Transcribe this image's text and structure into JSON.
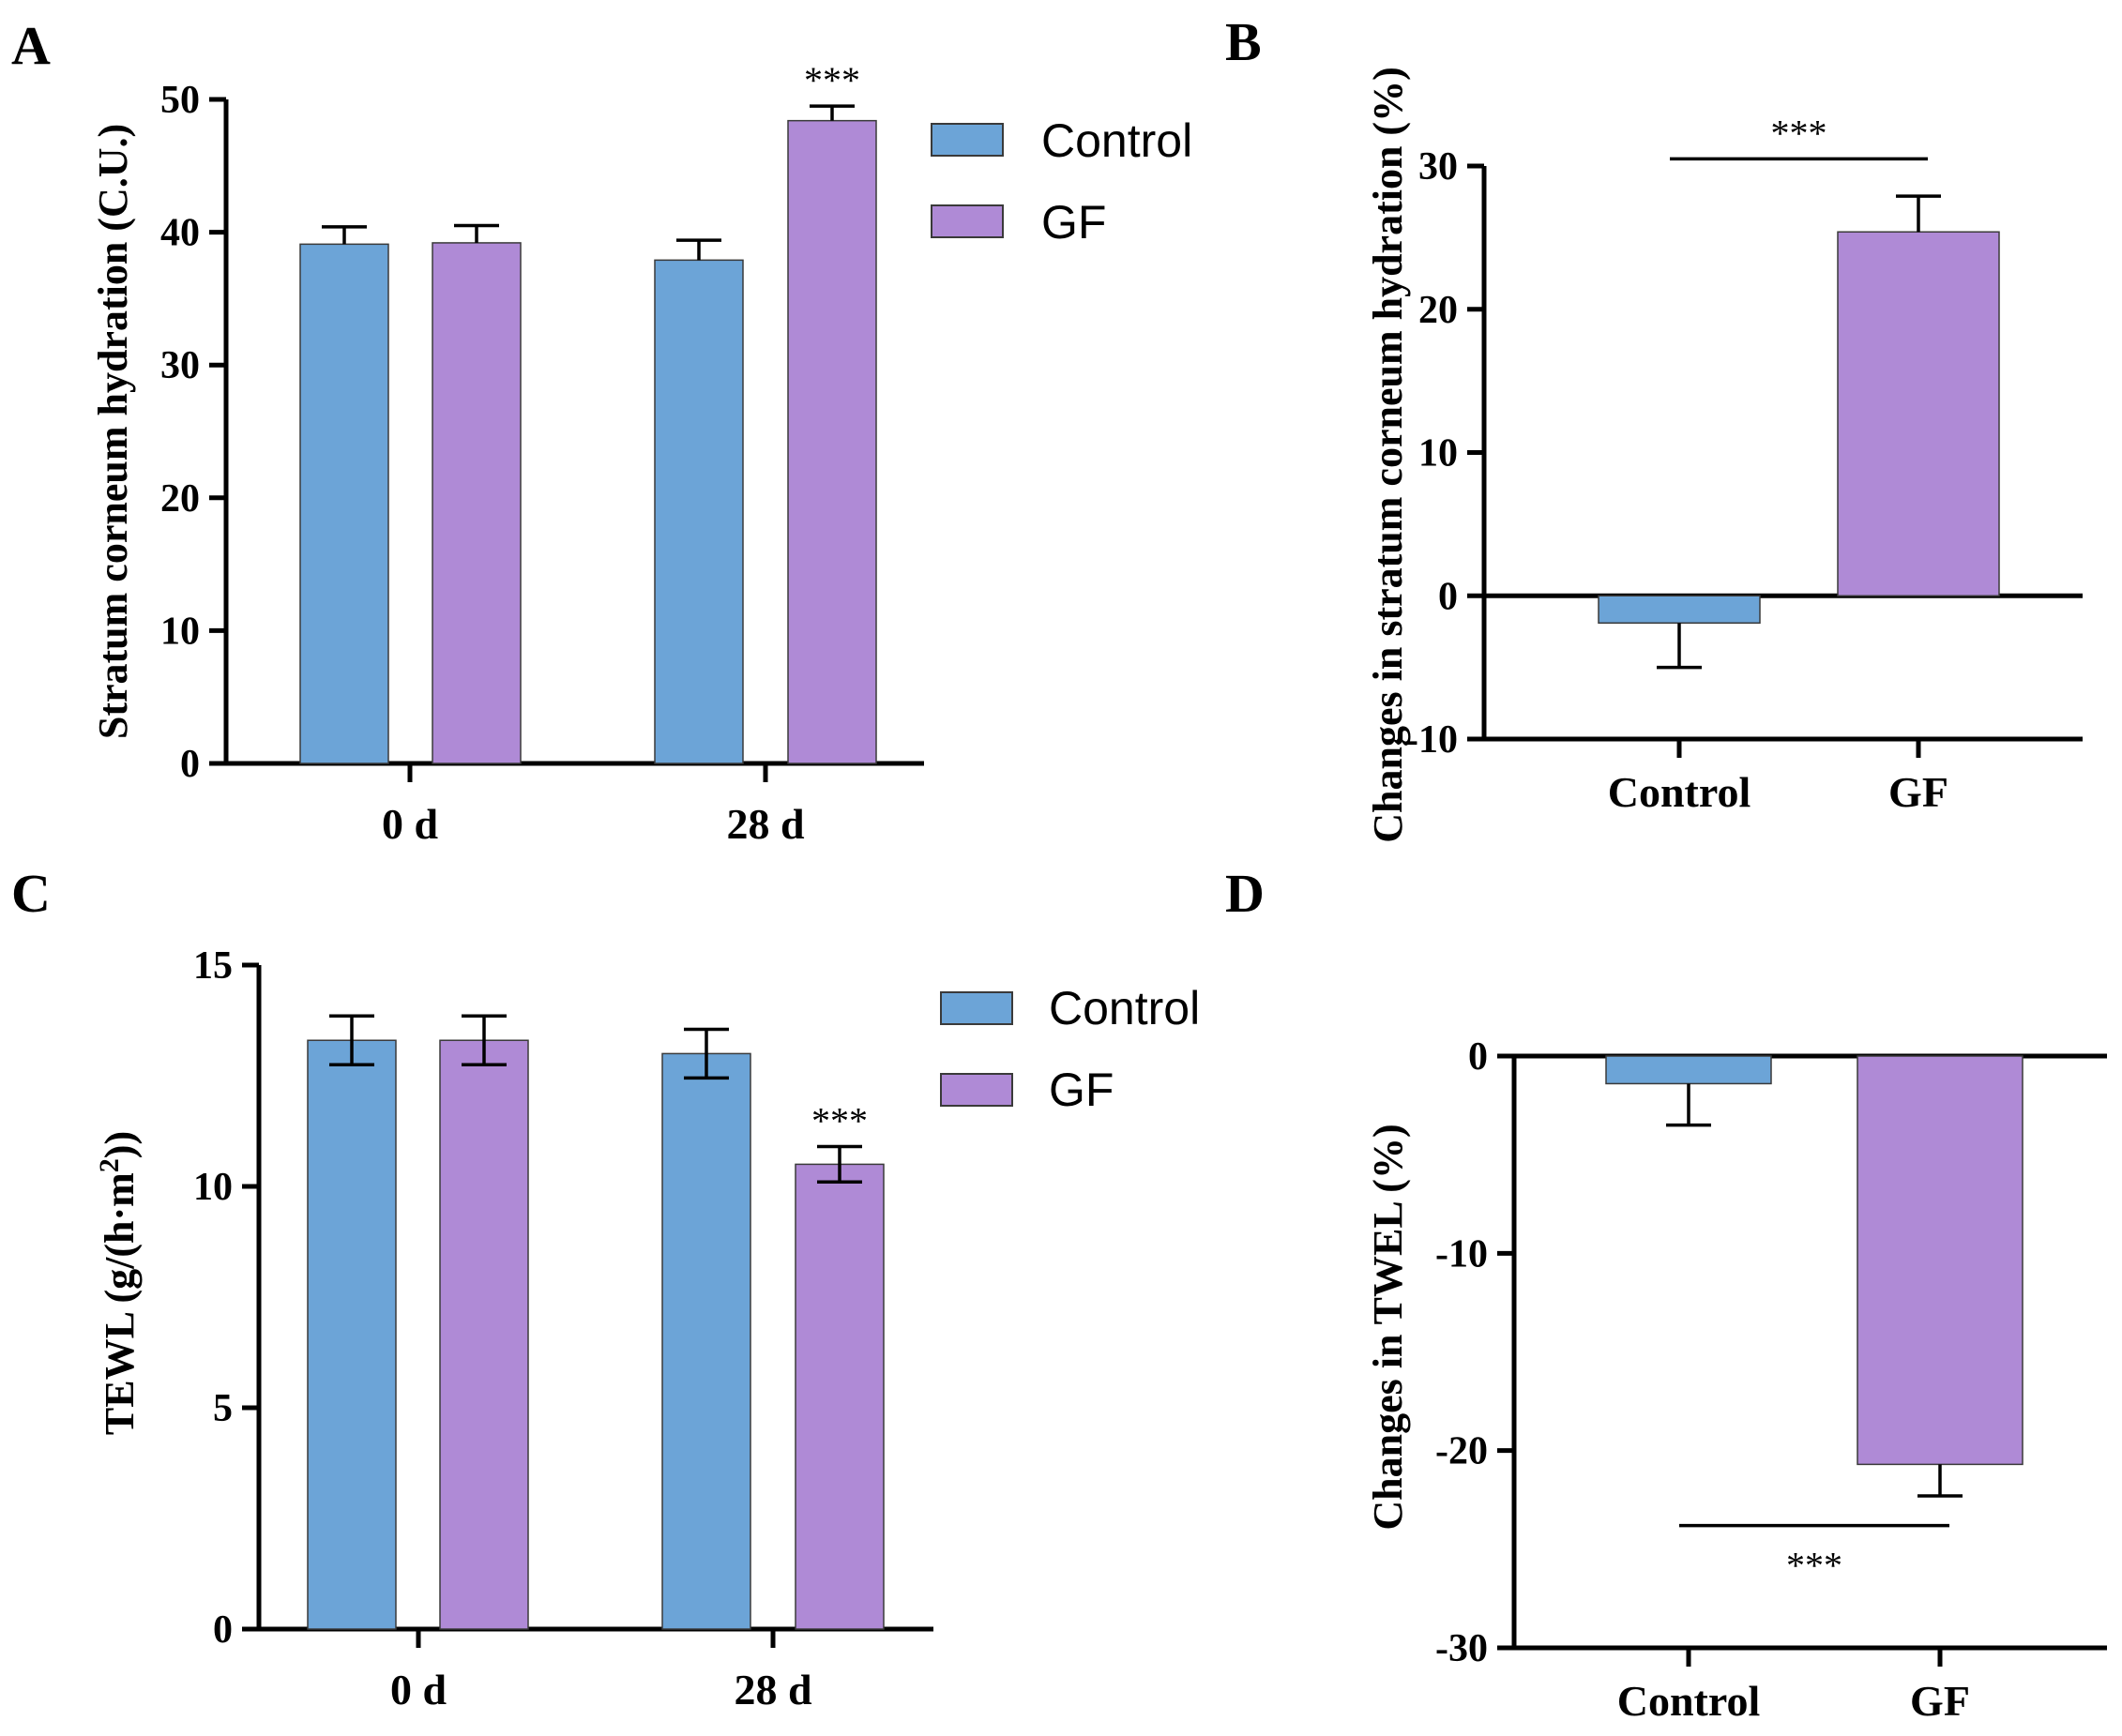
{
  "colors": {
    "control": "#6ca4d7",
    "gf": "#af8ad6",
    "bar_stroke": "#3a3a3a"
  },
  "chart_data": [
    {
      "panel": "A",
      "type": "bar",
      "ylabel": "Stratum corneum hydration (C.U.)",
      "ylim": [
        0,
        50
      ],
      "yticks": [
        0,
        10,
        20,
        30,
        40,
        50
      ],
      "categories": [
        "0 d",
        "28 d"
      ],
      "legend": [
        "Control",
        "GF"
      ],
      "series": [
        {
          "name": "Control",
          "values": [
            39.1,
            37.9
          ],
          "errors": [
            1.3,
            1.5
          ]
        },
        {
          "name": "GF",
          "values": [
            39.2,
            48.4
          ],
          "errors": [
            1.3,
            1.1
          ]
        }
      ],
      "annotations": [
        {
          "text": "***",
          "category": "28 d",
          "series": "GF"
        }
      ]
    },
    {
      "panel": "B",
      "type": "bar",
      "ylabel": "Changes in stratum corneum hydration (%)",
      "ylim": [
        -10,
        30
      ],
      "yticks": [
        -10,
        0,
        10,
        20,
        30
      ],
      "categories": [
        "Control",
        "GF"
      ],
      "values": [
        -1.9,
        25.4
      ],
      "errors": [
        3.1,
        2.5
      ],
      "significance": {
        "text": "***",
        "from": "Control",
        "to": "GF",
        "y": 30.5
      }
    },
    {
      "panel": "C",
      "type": "bar",
      "ylabel_main": "TEWL (g/(h·m",
      "ylabel_sup": "2",
      "ylabel_end": "))",
      "ylim": [
        0,
        15
      ],
      "yticks": [
        0,
        5,
        10,
        15
      ],
      "categories": [
        "0 d",
        "28 d"
      ],
      "legend": [
        "Control",
        "GF"
      ],
      "series": [
        {
          "name": "Control",
          "values": [
            13.3,
            13.0
          ],
          "errors": [
            0.55,
            0.55
          ]
        },
        {
          "name": "GF",
          "values": [
            13.3,
            10.5
          ],
          "errors": [
            0.55,
            0.4
          ]
        }
      ],
      "annotations": [
        {
          "text": "***",
          "category": "28 d",
          "series": "GF"
        }
      ]
    },
    {
      "panel": "D",
      "type": "bar",
      "ylabel": "Changes in TWEL (%)",
      "ylim": [
        -30,
        0
      ],
      "yticks": [
        -30,
        -20,
        -10,
        0
      ],
      "categories": [
        "Control",
        "GF"
      ],
      "values": [
        -1.4,
        -20.7
      ],
      "errors": [
        2.1,
        1.6
      ],
      "significance": {
        "text": "***",
        "from": "Control",
        "to": "GF",
        "y": -23.8
      }
    }
  ]
}
